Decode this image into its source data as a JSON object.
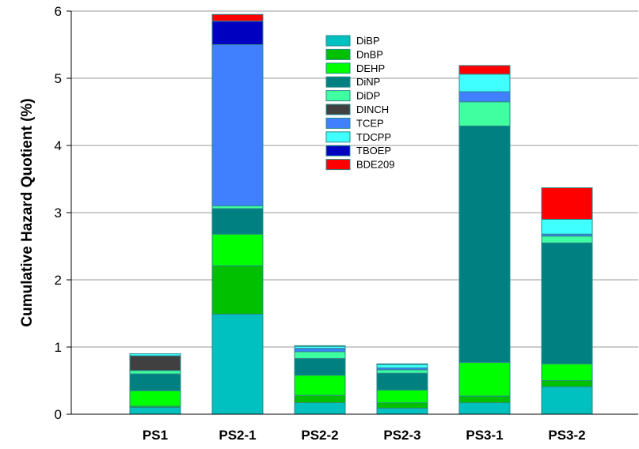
{
  "chart_data": {
    "type": "bar",
    "stacked": true,
    "title": "",
    "xlabel": "",
    "ylabel": "Cumulative Hazard Quotient (%)",
    "ylim": [
      0,
      6
    ],
    "yticks": [
      "0",
      "1",
      "2",
      "3",
      "4",
      "5",
      "6"
    ],
    "grid": true,
    "legend_position": "top-center",
    "categories": [
      "PS1",
      "PS2-1",
      "PS2-2",
      "PS2-3",
      "PS3-1",
      "PS3-2"
    ],
    "series": [
      {
        "name": "DiBP",
        "color": "#00c0c0",
        "values": [
          0.1,
          1.49,
          0.17,
          0.09,
          0.17,
          0.41
        ]
      },
      {
        "name": "DnBP",
        "color": "#00c000",
        "values": [
          0.02,
          0.72,
          0.11,
          0.08,
          0.1,
          0.09
        ]
      },
      {
        "name": "DEHP",
        "color": "#00ff00",
        "values": [
          0.23,
          0.47,
          0.3,
          0.19,
          0.5,
          0.25
        ]
      },
      {
        "name": "DiNP",
        "color": "#008080",
        "values": [
          0.25,
          0.38,
          0.25,
          0.25,
          3.52,
          1.8
        ]
      },
      {
        "name": "DiDP",
        "color": "#40ffa0",
        "values": [
          0.05,
          0.04,
          0.1,
          0.05,
          0.36,
          0.1
        ]
      },
      {
        "name": "DINCH",
        "color": "#404040",
        "values": [
          0.22,
          0.0,
          0.0,
          0.0,
          0.0,
          0.0
        ]
      },
      {
        "name": "TCEP",
        "color": "#4080ff",
        "values": [
          0.0,
          2.4,
          0.05,
          0.03,
          0.15,
          0.03
        ]
      },
      {
        "name": "TDCPP",
        "color": "#40ffff",
        "values": [
          0.03,
          0.0,
          0.03,
          0.05,
          0.26,
          0.22
        ]
      },
      {
        "name": "TBOEP",
        "color": "#0000c0",
        "values": [
          0.0,
          0.35,
          0.01,
          0.01,
          0.0,
          0.0
        ]
      },
      {
        "name": "BDE209",
        "color": "#ff0000",
        "values": [
          0.0,
          0.1,
          0.0,
          0.0,
          0.13,
          0.47
        ]
      }
    ]
  }
}
